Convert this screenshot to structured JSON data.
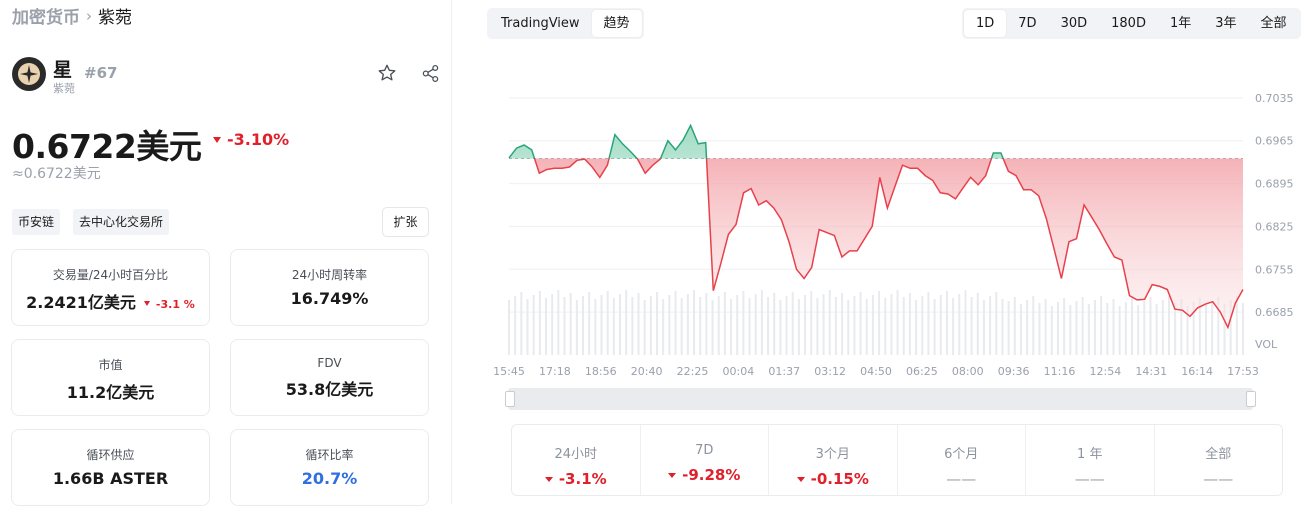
{
  "breadcrumb": {
    "parent": "加密货币",
    "current": "紫菀"
  },
  "coin": {
    "name": "星",
    "subname": "紫菀",
    "rank": "#67"
  },
  "price": {
    "value": "0.6722美元",
    "change": "-3.10%",
    "approx": "≈0.6722美元"
  },
  "tags": [
    "币安链",
    "去中心化交易所"
  ],
  "expand_label": "扩张",
  "stats": [
    {
      "label": "交易量/24小时百分比",
      "value": "2.2421亿美元",
      "change": "-3.1 %"
    },
    {
      "label": "24小时周转率",
      "value": "16.749%"
    },
    {
      "label": "市值",
      "value": "11.2亿美元"
    },
    {
      "label": "FDV",
      "value": "53.8亿美元"
    },
    {
      "label": "循环供应",
      "value": "1.66B ASTER"
    },
    {
      "label": "循环比率",
      "value": "20.7%"
    }
  ],
  "chart_tabs": [
    "TradingView",
    "趋势"
  ],
  "range_tabs": [
    "1D",
    "7D",
    "30D",
    "180D",
    "1年",
    "3年",
    "全部"
  ],
  "performance": [
    {
      "label": "24小时",
      "value": "-3.1%"
    },
    {
      "label": "7D",
      "value": "-9.28%"
    },
    {
      "label": "3个月",
      "value": "-0.15%"
    },
    {
      "label": "6个月",
      "value": "——"
    },
    {
      "label": "1 年",
      "value": "——"
    },
    {
      "label": "全部",
      "value": "——"
    }
  ],
  "colors": {
    "up": "#2aa579",
    "down": "#e8414b",
    "blue": "#2f6fe0"
  },
  "chart_data": {
    "type": "area",
    "yticks": [
      "0.7035",
      "0.6965",
      "0.6895",
      "0.6825",
      "0.6755",
      "0.6685"
    ],
    "ylim": [
      0.6615,
      0.7105
    ],
    "vol_label": "VOL",
    "xticks": [
      "15:45",
      "17:18",
      "18:56",
      "20:40",
      "22:25",
      "00:04",
      "01:37",
      "03:12",
      "04:50",
      "06:25",
      "08:00",
      "09:36",
      "11:16",
      "12:54",
      "14:31",
      "16:14",
      "17:53"
    ],
    "baseline": 0.6936,
    "values": [
      0.6937,
      0.6953,
      0.6958,
      0.695,
      0.6912,
      0.6918,
      0.692,
      0.692,
      0.6922,
      0.6933,
      0.6935,
      0.6922,
      0.6905,
      0.6925,
      0.6975,
      0.696,
      0.6948,
      0.6935,
      0.6912,
      0.6925,
      0.6935,
      0.6965,
      0.695,
      0.6966,
      0.699,
      0.696,
      0.6962,
      0.672,
      0.6765,
      0.6812,
      0.6828,
      0.688,
      0.6887,
      0.686,
      0.6867,
      0.6855,
      0.6836,
      0.68,
      0.6755,
      0.674,
      0.6758,
      0.682,
      0.6815,
      0.681,
      0.6775,
      0.6785,
      0.6785,
      0.6805,
      0.6825,
      0.6905,
      0.6855,
      0.689,
      0.6925,
      0.692,
      0.692,
      0.6908,
      0.69,
      0.688,
      0.6878,
      0.687,
      0.6888,
      0.6905,
      0.6893,
      0.6908,
      0.6945,
      0.6945,
      0.6915,
      0.6908,
      0.6885,
      0.6885,
      0.6875,
      0.6838,
      0.679,
      0.674,
      0.68,
      0.6805,
      0.686,
      0.684,
      0.682,
      0.6797,
      0.6775,
      0.677,
      0.6712,
      0.6705,
      0.6706,
      0.673,
      0.6727,
      0.6722,
      0.669,
      0.6688,
      0.6678,
      0.6692,
      0.6698,
      0.6702,
      0.6685,
      0.666,
      0.67,
      0.6722
    ]
  }
}
